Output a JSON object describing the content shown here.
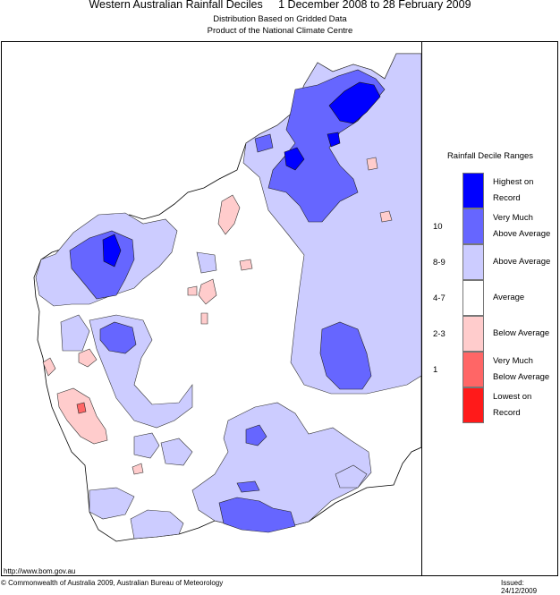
{
  "header": {
    "title": "Western Australian Rainfall Deciles     1 December 2008 to 28 February 2009",
    "subtitle1": "Distribution Based on Gridded Data",
    "subtitle2": "Product of the National Climate Centre"
  },
  "legend": {
    "title": "Rainfall Decile Ranges",
    "items": [
      {
        "label": "Highest on Record",
        "line1": "Highest on",
        "line2": "Record",
        "color": "#0000ff",
        "range": ""
      },
      {
        "label": "Very Much Above Average",
        "line1": "Very Much",
        "line2": "Above Average",
        "color": "#6666ff",
        "range": "10"
      },
      {
        "label": "Above Average",
        "line1": "Above Average",
        "line2": "",
        "color": "#ccccff",
        "range": "8-9"
      },
      {
        "label": "Average",
        "line1": "Average",
        "line2": "",
        "color": "#ffffff",
        "range": "4-7"
      },
      {
        "label": "Below Average",
        "line1": "Below Average",
        "line2": "",
        "color": "#ffcccc",
        "range": "2-3"
      },
      {
        "label": "Very Much Below Average",
        "line1": "Very Much",
        "line2": "Below Average",
        "color": "#ff6666",
        "range": "1"
      },
      {
        "label": "Lowest on Record",
        "line1": "Lowest on",
        "line2": "Record",
        "color": "#ff1a1a",
        "range": ""
      }
    ]
  },
  "footer": {
    "url": "http://www.bom.gov.au",
    "copyright": "© Commonwealth of Australia 2009, Australian Bureau of Meteorology",
    "issued": "Issued: 24/12/2009"
  }
}
